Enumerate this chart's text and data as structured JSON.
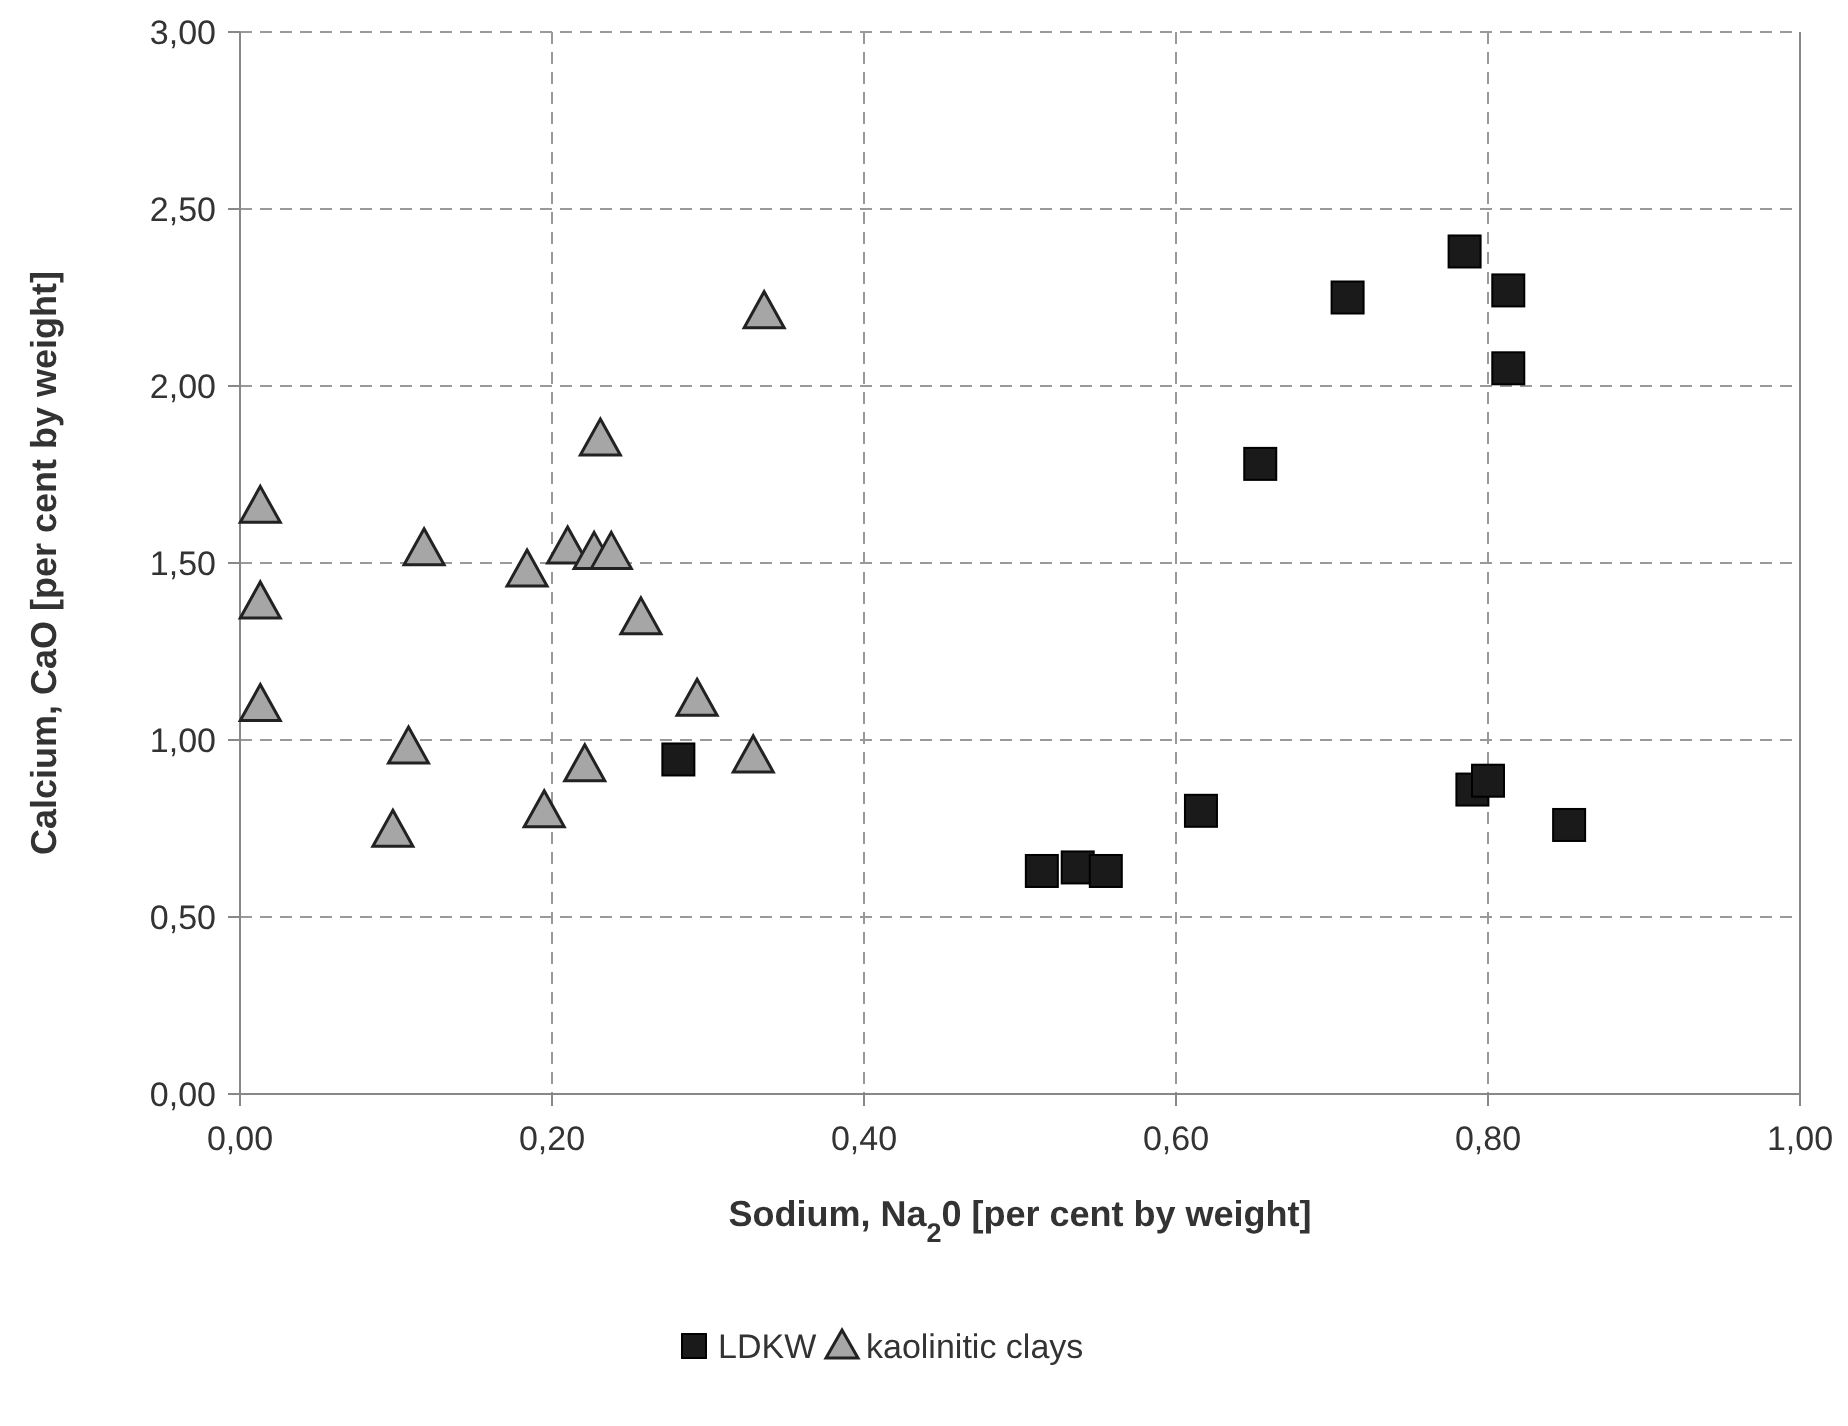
{
  "chart_data": {
    "type": "scatter",
    "xlabel": "Sodium, Na$_{2}$0 [per cent by weight]",
    "ylabel": "Calcium, CaO [per cent by weight]",
    "xlim": [
      0,
      1
    ],
    "ylim": [
      0,
      3
    ],
    "xticks": [
      {
        "value": 0,
        "label": "0,00"
      },
      {
        "value": 0.2,
        "label": "0,20"
      },
      {
        "value": 0.4,
        "label": "0,40"
      },
      {
        "value": 0.6,
        "label": "0,60"
      },
      {
        "value": 0.8,
        "label": "0,80"
      },
      {
        "value": 1,
        "label": "1,00"
      }
    ],
    "yticks": [
      {
        "value": 0,
        "label": "0,00"
      },
      {
        "value": 0.5,
        "label": "0,50"
      },
      {
        "value": 1,
        "label": "1,00"
      },
      {
        "value": 1.5,
        "label": "1,50"
      },
      {
        "value": 2,
        "label": "2,00"
      },
      {
        "value": 2.5,
        "label": "2,50"
      },
      {
        "value": 3,
        "label": "3,00"
      }
    ],
    "grid": true,
    "legend": "bottom",
    "series": [
      {
        "name": "LDKW",
        "color": "#1a1a1a",
        "marker": "square",
        "x": [
          0.785,
          0.71,
          0.813,
          0.813,
          0.654,
          0.281,
          0.514,
          0.537,
          0.555,
          0.616,
          0.79,
          0.8,
          0.852
        ],
        "values": [
          2.38,
          2.25,
          2.27,
          2.05,
          1.78,
          0.945,
          0.63,
          0.64,
          0.63,
          0.8,
          0.86,
          0.885,
          0.76
        ]
      },
      {
        "name": "kaolinitic clays",
        "color": "#a6a6a6",
        "marker": "triangle",
        "x": [
          0.336,
          0.231,
          0.013,
          0.118,
          0.013,
          0.184,
          0.21,
          0.227,
          0.238,
          0.257,
          0.013,
          0.293,
          0.108,
          0.329,
          0.221,
          0.195,
          0.098
        ],
        "values": [
          2.21,
          1.85,
          1.66,
          1.54,
          1.39,
          1.48,
          1.545,
          1.53,
          1.53,
          1.345,
          1.1,
          1.115,
          0.98,
          0.955,
          0.93,
          0.8,
          0.745
        ]
      }
    ]
  }
}
